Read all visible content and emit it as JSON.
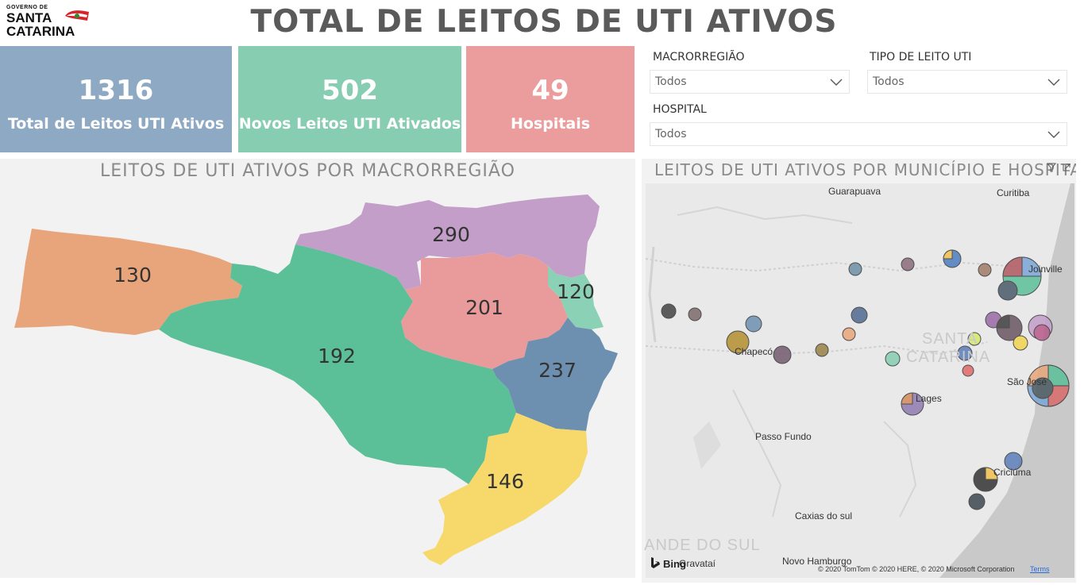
{
  "header": {
    "logo": {
      "line1": "GOVERNO DE",
      "line2": "SANTA",
      "line3": "CATARINA"
    },
    "title": "TOTAL DE LEITOS DE UTI ATIVOS"
  },
  "kpis": [
    {
      "value": "1316",
      "label": "Total de Leitos UTI Ativos",
      "color": "#8ea9c3"
    },
    {
      "value": "502",
      "label": "Novos Leitos UTI Ativados",
      "color": "#86cdb1"
    },
    {
      "value": "49",
      "label": "Hospitais",
      "color": "#eb9d9e"
    }
  ],
  "filters": {
    "macrorregiao": {
      "label": "MACRORREGIÃO",
      "value": "Todos"
    },
    "tipo_leito": {
      "label": "TIPO DE LEITO UTI",
      "value": "Todos"
    },
    "hospital": {
      "label": "HOSPITAL",
      "value": "Todos"
    }
  },
  "left_map": {
    "title": "LEITOS DE UTI ATIVOS POR MACRORREGIÃO",
    "regions": [
      {
        "value": "130",
        "color": "#e8a57b"
      },
      {
        "value": "290",
        "color": "#c39ec9"
      },
      {
        "value": "192",
        "color": "#5bbf98"
      },
      {
        "value": "201",
        "color": "#e99a9a"
      },
      {
        "value": "120",
        "color": "#8ad1b6"
      },
      {
        "value": "237",
        "color": "#6d90b1"
      },
      {
        "value": "146",
        "color": "#f6d86b"
      }
    ]
  },
  "right_map": {
    "title": "LEITOS DE UTI ATIVOS POR MUNICÍPIO E HOSPITAL",
    "labels": {
      "guarapuava": "Guarapuava",
      "curitiba": "Curitiba",
      "joinville": "Joinville",
      "chapeco": "Chapecó",
      "lages": "Lages",
      "sao_jose": "São José",
      "passo_fundo": "Passo Fundo",
      "criciuma": "Criciúma",
      "caxias": "Caxias do sul",
      "novo_hamburgo": "Novo Hamburgo",
      "gravatai": "Gravataí",
      "santa_catarina_1": "SANTA",
      "santa_catarina_2": "CATARINA",
      "rio_grande": "ANDE DO SUL"
    },
    "bing": "Bing",
    "copyright": "© 2020 TomTom © 2020 HERE, © 2020 Microsoft Corporation",
    "terms": "Terms"
  }
}
